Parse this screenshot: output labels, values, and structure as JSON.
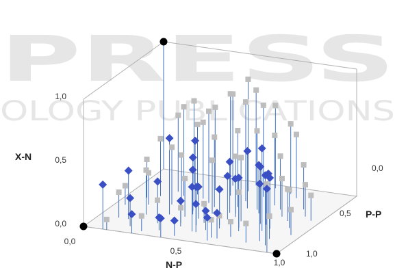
{
  "chart_data": {
    "type": "scatter",
    "view": "3d",
    "xlabel": "N-P",
    "ylabel": "P-P",
    "zlabel": "X-N",
    "x_ticks": [
      "0,0",
      "0,5",
      "1,0"
    ],
    "y_ticks": [
      "0,0",
      "0,5",
      "1,0"
    ],
    "z_ticks": [
      "0,0",
      "0,5",
      "1,0"
    ],
    "xlim": [
      0,
      1
    ],
    "ylim": [
      0,
      1
    ],
    "zlim": [
      0,
      1
    ],
    "colors": {
      "series_blue": "#3a4fc4",
      "series_gray": "#bdbdbd",
      "series_black": "#000000",
      "drop_line": "#3f6fbf"
    },
    "watermark": [
      "PRESS",
      "OLOGY PUBLICATIONS"
    ],
    "series": [
      {
        "marker": "diamond",
        "color": "#3a4fc4",
        "points": [
          [
            0.1,
            0.0,
            0.35
          ],
          [
            0.15,
            0.2,
            0.38
          ],
          [
            0.25,
            0.0,
            0.15
          ],
          [
            0.35,
            0.1,
            0.1
          ],
          [
            0.4,
            0.0,
            0.15
          ],
          [
            0.42,
            0.2,
            0.2
          ],
          [
            0.45,
            0.35,
            0.25
          ],
          [
            0.5,
            0.15,
            0.35
          ],
          [
            0.55,
            0.2,
            0.15
          ],
          [
            0.58,
            0.3,
            0.28
          ],
          [
            0.6,
            0.45,
            0.3
          ],
          [
            0.65,
            0.1,
            0.2
          ],
          [
            0.7,
            0.25,
            0.42
          ],
          [
            0.75,
            0.4,
            0.45
          ],
          [
            0.8,
            0.3,
            0.65
          ],
          [
            0.85,
            0.15,
            0.45
          ],
          [
            0.9,
            0.1,
            0.55
          ],
          [
            0.55,
            0.5,
            0.4
          ],
          [
            0.3,
            0.35,
            0.6
          ],
          [
            0.6,
            0.6,
            0.45
          ],
          [
            0.4,
            0.4,
            0.35
          ],
          [
            0.2,
            0.1,
            0.22
          ],
          [
            0.48,
            0.25,
            0.3
          ],
          [
            0.62,
            0.05,
            0.18
          ],
          [
            0.35,
            0.55,
            0.5
          ],
          [
            0.75,
            0.5,
            0.35
          ],
          [
            0.95,
            0.0,
            0.5
          ],
          [
            0.45,
            0.05,
            0.12
          ],
          [
            0.68,
            0.55,
            0.38
          ],
          [
            0.52,
            0.15,
            0.22
          ],
          [
            0.28,
            0.25,
            0.3
          ],
          [
            0.38,
            0.45,
            0.42
          ],
          [
            0.58,
            0.4,
            0.34
          ],
          [
            0.82,
            0.35,
            0.4
          ]
        ]
      },
      {
        "marker": "square",
        "color": "#bdbdbd",
        "points": [
          [
            0.1,
            0.2,
            0.2
          ],
          [
            0.15,
            0.45,
            0.25
          ],
          [
            0.2,
            0.3,
            0.35
          ],
          [
            0.25,
            0.5,
            0.45
          ],
          [
            0.3,
            0.7,
            0.55
          ],
          [
            0.35,
            0.8,
            0.65
          ],
          [
            0.4,
            0.6,
            0.72
          ],
          [
            0.45,
            0.75,
            0.8
          ],
          [
            0.5,
            0.85,
            0.88
          ],
          [
            0.55,
            0.7,
            0.78
          ],
          [
            0.6,
            0.8,
            0.72
          ],
          [
            0.65,
            0.6,
            0.62
          ],
          [
            0.7,
            0.7,
            0.55
          ],
          [
            0.75,
            0.65,
            0.42
          ],
          [
            0.8,
            0.55,
            0.3
          ],
          [
            0.85,
            0.5,
            0.25
          ],
          [
            0.9,
            0.4,
            0.3
          ],
          [
            0.95,
            0.3,
            0.2
          ],
          [
            0.3,
            0.2,
            0.18
          ],
          [
            0.4,
            0.25,
            0.12
          ],
          [
            0.5,
            0.3,
            0.15
          ],
          [
            0.6,
            0.25,
            0.1
          ],
          [
            0.7,
            0.15,
            0.12
          ],
          [
            0.8,
            0.1,
            0.15
          ],
          [
            0.25,
            0.65,
            0.7
          ],
          [
            0.35,
            0.65,
            0.6
          ],
          [
            0.45,
            0.55,
            0.55
          ],
          [
            0.55,
            0.6,
            0.6
          ],
          [
            0.65,
            0.4,
            0.5
          ],
          [
            0.2,
            0.7,
            0.6
          ],
          [
            0.3,
            0.5,
            0.4
          ],
          [
            0.75,
            0.85,
            0.5
          ],
          [
            0.85,
            0.7,
            0.35
          ],
          [
            0.9,
            0.6,
            0.25
          ],
          [
            0.5,
            0.95,
            0.75
          ],
          [
            0.6,
            0.95,
            0.65
          ],
          [
            0.4,
            0.9,
            0.72
          ],
          [
            0.7,
            0.9,
            0.55
          ],
          [
            0.15,
            0.6,
            0.45
          ],
          [
            0.1,
            0.55,
            0.3
          ],
          [
            0.05,
            0.4,
            0.15
          ],
          [
            0.12,
            0.0,
            0.08
          ],
          [
            0.28,
            0.05,
            0.12
          ],
          [
            0.95,
            0.55,
            0.2
          ],
          [
            0.88,
            0.2,
            0.18
          ],
          [
            0.62,
            0.1,
            0.14
          ],
          [
            0.48,
            0.45,
            0.42
          ],
          [
            0.38,
            0.35,
            0.3
          ],
          [
            0.58,
            0.5,
            0.45
          ],
          [
            0.68,
            0.3,
            0.28
          ],
          [
            0.78,
            0.4,
            0.32
          ],
          [
            0.22,
            0.85,
            0.65
          ]
        ]
      },
      {
        "marker": "circle",
        "color": "#000000",
        "points": [
          [
            0.0,
            0.0,
            0.0
          ],
          [
            1.0,
            0.0,
            0.0
          ],
          [
            0.0,
            1.0,
            1.0
          ]
        ]
      }
    ]
  }
}
